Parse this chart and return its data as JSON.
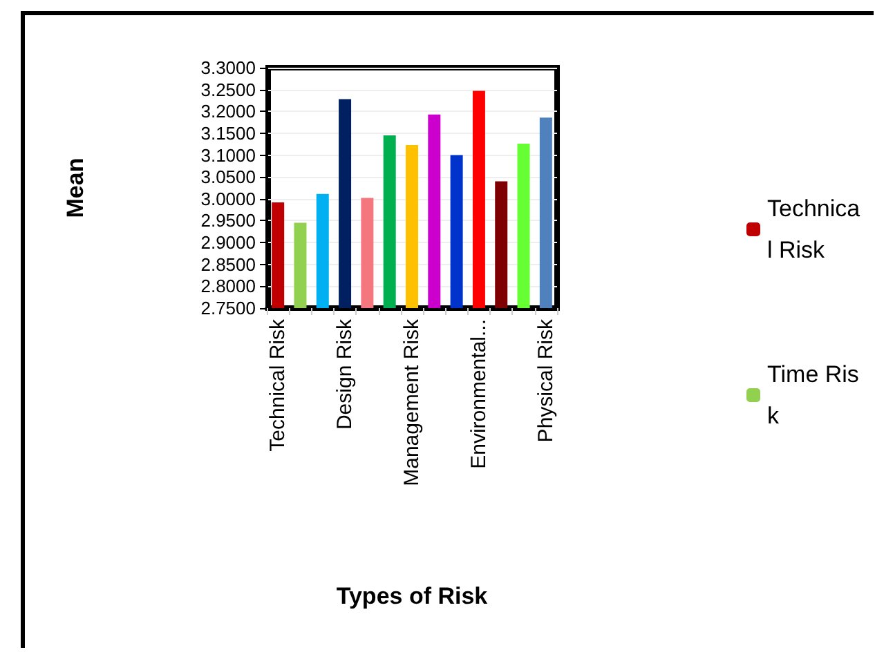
{
  "chart_data": {
    "type": "bar",
    "xlabel": "Types of Risk",
    "ylabel": "Mean",
    "categories": [
      "Technical Risk",
      null,
      null,
      "Design Risk",
      null,
      null,
      "Management Risk",
      null,
      null,
      "Environmental...",
      null,
      null,
      "Physical Risk"
    ],
    "stacked": true,
    "series": [
      {
        "name": "Technical Risk",
        "color": "#c00000",
        "values": [
          2.992,
          null,
          null,
          null,
          null,
          null,
          null,
          null,
          null,
          null,
          null,
          null,
          null
        ]
      },
      {
        "name": "Time Risk",
        "color": "#92d050",
        "values": [
          null,
          2.945,
          null,
          null,
          null,
          null,
          null,
          null,
          null,
          null,
          null,
          null,
          null
        ]
      },
      {
        "color": "#00b0f0",
        "values": [
          null,
          null,
          3.011,
          null,
          null,
          null,
          null,
          null,
          null,
          null,
          null,
          null,
          null
        ]
      },
      {
        "color": "#002060",
        "values": [
          null,
          null,
          null,
          3.228,
          null,
          null,
          null,
          null,
          null,
          null,
          null,
          null,
          null
        ]
      },
      {
        "color": "#f4777f",
        "values": [
          null,
          null,
          null,
          null,
          3.002,
          null,
          null,
          null,
          null,
          null,
          null,
          null,
          null
        ]
      },
      {
        "color": "#00b050",
        "values": [
          null,
          null,
          null,
          null,
          null,
          3.145,
          null,
          null,
          null,
          null,
          null,
          null,
          null
        ]
      },
      {
        "color": "#ffc000",
        "values": [
          null,
          null,
          null,
          null,
          null,
          null,
          3.123,
          null,
          null,
          null,
          null,
          null,
          null
        ]
      },
      {
        "color": "#cc00cc",
        "values": [
          null,
          null,
          null,
          null,
          null,
          null,
          null,
          3.193,
          null,
          null,
          null,
          null,
          null
        ]
      },
      {
        "color": "#0033cc",
        "values": [
          null,
          null,
          null,
          null,
          null,
          null,
          null,
          null,
          3.1,
          null,
          null,
          null,
          null
        ]
      },
      {
        "color": "#ff0000",
        "values": [
          null,
          null,
          null,
          null,
          null,
          null,
          null,
          null,
          null,
          3.247,
          null,
          null,
          null
        ]
      },
      {
        "color": "#7f0000",
        "values": [
          null,
          null,
          null,
          null,
          null,
          null,
          null,
          null,
          null,
          null,
          3.04,
          null,
          null
        ]
      },
      {
        "color": "#66ff33",
        "values": [
          null,
          null,
          null,
          null,
          null,
          null,
          null,
          null,
          null,
          null,
          null,
          3.126,
          null
        ]
      },
      {
        "color": "#4f81bd",
        "values": [
          null,
          null,
          null,
          null,
          null,
          null,
          null,
          null,
          null,
          null,
          null,
          null,
          3.186
        ]
      }
    ],
    "ylim": [
      2.75,
      3.3
    ],
    "yticks": [
      {
        "value": 2.75,
        "label": "2.7500"
      },
      {
        "value": 2.8,
        "label": "2.8000"
      },
      {
        "value": 2.85,
        "label": "2.8500"
      },
      {
        "value": 2.9,
        "label": "2.9000"
      },
      {
        "value": 2.95,
        "label": "2.9500"
      },
      {
        "value": 3,
        "label": "3.0000"
      },
      {
        "value": 3.05,
        "label": "3.0500"
      },
      {
        "value": 3.1,
        "label": "3.1000"
      },
      {
        "value": 3.15,
        "label": "3.1500"
      },
      {
        "value": 3.2,
        "label": "3.2000"
      },
      {
        "value": 3.25,
        "label": "3.2500"
      },
      {
        "value": 3.3,
        "label": "3.3000"
      }
    ],
    "grid": "y",
    "legend": "right"
  }
}
